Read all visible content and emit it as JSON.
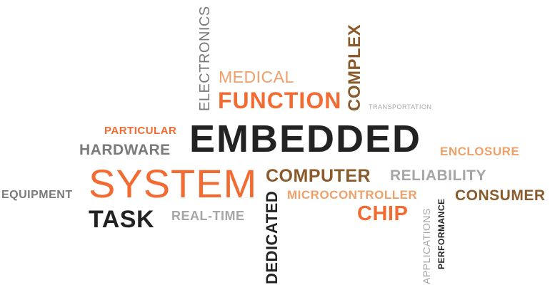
{
  "words": {
    "embedded": "EMBEDDED",
    "system": "SYSTEM",
    "function": "FUNCTION",
    "medical": "MEDICAL",
    "electronics": "ELECTRONICS",
    "complex": "COMPLEX",
    "transportation": "TRANSPORTATION",
    "particular": "PARTICULAR",
    "hardware": "HARDWARE",
    "enclosure": "ENCLOSURE",
    "computer": "COMPUTER",
    "reliability": "RELIABILITY",
    "microcontroller": "MICROCONTROLLER",
    "consumer": "CONSUMER",
    "equipment": "EQUIPMENT",
    "chip": "CHIP",
    "task": "TASK",
    "real_time": "REAL-TIME",
    "dedicated": "DEDICATED",
    "applications": "APPLICATIONS",
    "performance": "PERFORMANCE"
  },
  "colors": {
    "orange": "#f26b33",
    "peach": "#f0a069",
    "brown": "#8b5a2b",
    "gray": "#7a7a7a",
    "light_gray": "#a6a6a6",
    "dark": "#222222",
    "background": "#ffffff"
  }
}
